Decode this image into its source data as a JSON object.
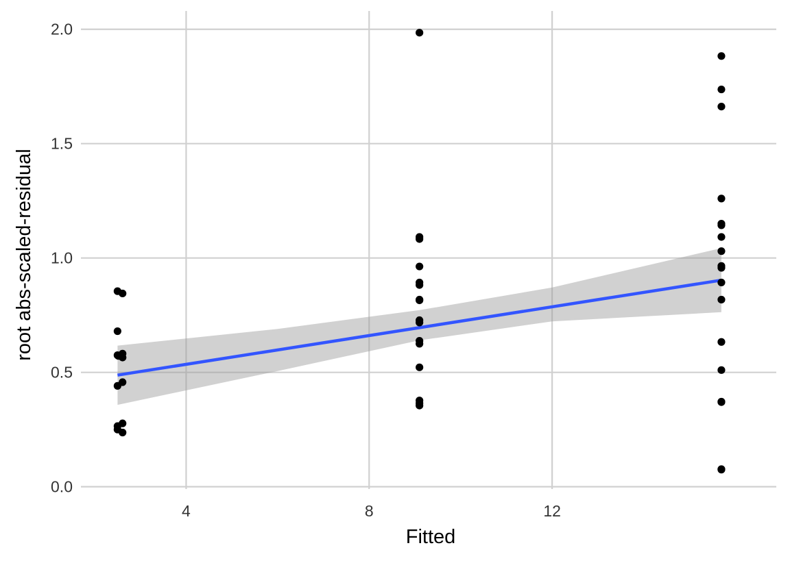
{
  "chart_data": {
    "type": "scatter",
    "xlabel": "Fitted",
    "ylabel": "root abs-scaled-residual",
    "xlim": [
      1.7,
      16.9
    ],
    "ylim": [
      -0.01,
      2.08
    ],
    "x_ticks": [
      4,
      8,
      12
    ],
    "x_tick_labels": [
      "4",
      "8",
      "12"
    ],
    "y_ticks": [
      0.0,
      0.5,
      1.0,
      1.5,
      2.0
    ],
    "y_tick_labels": [
      "0.0",
      "0.5",
      "1.0",
      "1.5",
      "2.0"
    ],
    "grid": true,
    "legend": "none",
    "colors": {
      "points": "#000000",
      "fit_line": "#3355ff",
      "band": "#999999",
      "grid": "#d0d0d0"
    },
    "points": [
      {
        "x": 2.5,
        "y": 0.855
      },
      {
        "x": 2.61,
        "y": 0.845
      },
      {
        "x": 2.5,
        "y": 0.68
      },
      {
        "x": 2.5,
        "y": 0.575
      },
      {
        "x": 2.52,
        "y": 0.572
      },
      {
        "x": 2.61,
        "y": 0.582
      },
      {
        "x": 2.61,
        "y": 0.565
      },
      {
        "x": 2.61,
        "y": 0.457
      },
      {
        "x": 2.5,
        "y": 0.441
      },
      {
        "x": 2.61,
        "y": 0.277
      },
      {
        "x": 2.5,
        "y": 0.265
      },
      {
        "x": 2.5,
        "y": 0.25
      },
      {
        "x": 2.61,
        "y": 0.237
      },
      {
        "x": 9.1,
        "y": 1.985
      },
      {
        "x": 9.1,
        "y": 1.092
      },
      {
        "x": 9.1,
        "y": 1.083
      },
      {
        "x": 9.1,
        "y": 0.963
      },
      {
        "x": 9.1,
        "y": 0.893
      },
      {
        "x": 9.1,
        "y": 0.882
      },
      {
        "x": 9.1,
        "y": 0.818
      },
      {
        "x": 9.1,
        "y": 0.815
      },
      {
        "x": 9.1,
        "y": 0.728
      },
      {
        "x": 9.1,
        "y": 0.718
      },
      {
        "x": 9.1,
        "y": 0.638
      },
      {
        "x": 9.1,
        "y": 0.625
      },
      {
        "x": 9.1,
        "y": 0.522
      },
      {
        "x": 9.1,
        "y": 0.377
      },
      {
        "x": 9.1,
        "y": 0.365
      },
      {
        "x": 9.1,
        "y": 0.355
      },
      {
        "x": 15.7,
        "y": 1.883
      },
      {
        "x": 15.7,
        "y": 1.737
      },
      {
        "x": 15.7,
        "y": 1.662
      },
      {
        "x": 15.7,
        "y": 1.26
      },
      {
        "x": 15.7,
        "y": 1.15
      },
      {
        "x": 15.7,
        "y": 1.143
      },
      {
        "x": 15.7,
        "y": 1.092
      },
      {
        "x": 15.7,
        "y": 1.03
      },
      {
        "x": 15.7,
        "y": 0.965
      },
      {
        "x": 15.7,
        "y": 0.957
      },
      {
        "x": 15.7,
        "y": 0.893
      },
      {
        "x": 15.7,
        "y": 0.818
      },
      {
        "x": 15.7,
        "y": 0.633
      },
      {
        "x": 15.7,
        "y": 0.51
      },
      {
        "x": 15.7,
        "y": 0.372
      },
      {
        "x": 15.7,
        "y": 0.37
      },
      {
        "x": 15.7,
        "y": 0.077
      },
      {
        "x": 15.7,
        "y": 0.075
      }
    ],
    "fit": {
      "method": "linear",
      "x": [
        2.5,
        15.7
      ],
      "y": [
        0.488,
        0.903
      ]
    },
    "confidence_band": {
      "x": [
        2.5,
        6.0,
        9.1,
        12.0,
        15.7
      ],
      "lower": [
        0.358,
        0.506,
        0.64,
        0.723,
        0.763
      ],
      "upper": [
        0.617,
        0.69,
        0.772,
        0.871,
        1.043
      ]
    }
  }
}
